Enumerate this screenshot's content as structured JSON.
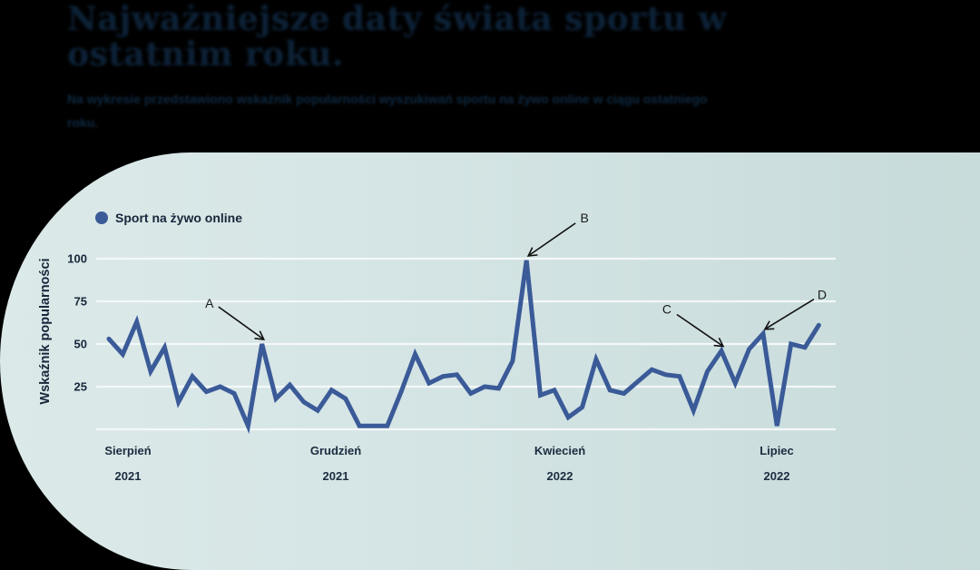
{
  "header": {
    "title": "Najważniejsze daty świata sportu w ostatnim roku.",
    "subtitle": "Na wykresie przedstawiono wskaźnik popularności wyszukiwań sportu na żywo online w ciągu ostatniego roku."
  },
  "colors": {
    "line": "#3a5a98",
    "panel_bg": "#d4e4e4",
    "gridline": "#f4f8f8",
    "text": "#17263a",
    "annotation": "#111111"
  },
  "chart_data": {
    "type": "line",
    "title": "Najważniejsze daty świata sportu w ostatnim roku.",
    "xlabel": "",
    "ylabel": "Wskaźnik popularności",
    "ylim": [
      0,
      100
    ],
    "yticks": [
      25,
      50,
      75,
      100
    ],
    "grid": true,
    "legend_position": "top-left",
    "x_tick_labels": [
      {
        "month": "Sierpień",
        "year": "2021"
      },
      {
        "month": "Grudzień",
        "year": "2021"
      },
      {
        "month": "Kwiecień",
        "year": "2022"
      },
      {
        "month": "Lipiec",
        "year": "2022"
      }
    ],
    "series": [
      {
        "name": "Sport na żywo online",
        "color": "#3a5a98",
        "values": [
          53,
          44,
          63,
          34,
          48,
          16,
          31,
          22,
          25,
          21,
          2,
          50,
          18,
          26,
          16,
          11,
          23,
          18,
          2,
          2,
          2,
          22,
          44,
          27,
          31,
          32,
          21,
          25,
          24,
          40,
          99,
          20,
          23,
          7,
          13,
          41,
          23,
          21,
          28,
          35,
          32,
          31,
          11,
          34,
          46,
          27,
          47,
          56,
          2,
          50,
          48,
          61
        ]
      }
    ],
    "annotations": [
      {
        "label": "A",
        "point_index": 11,
        "value": 50
      },
      {
        "label": "B",
        "point_index": 30,
        "value": 99
      },
      {
        "label": "C",
        "point_index": 44,
        "value": 46
      },
      {
        "label": "D",
        "point_index": 47,
        "value": 56
      }
    ]
  }
}
